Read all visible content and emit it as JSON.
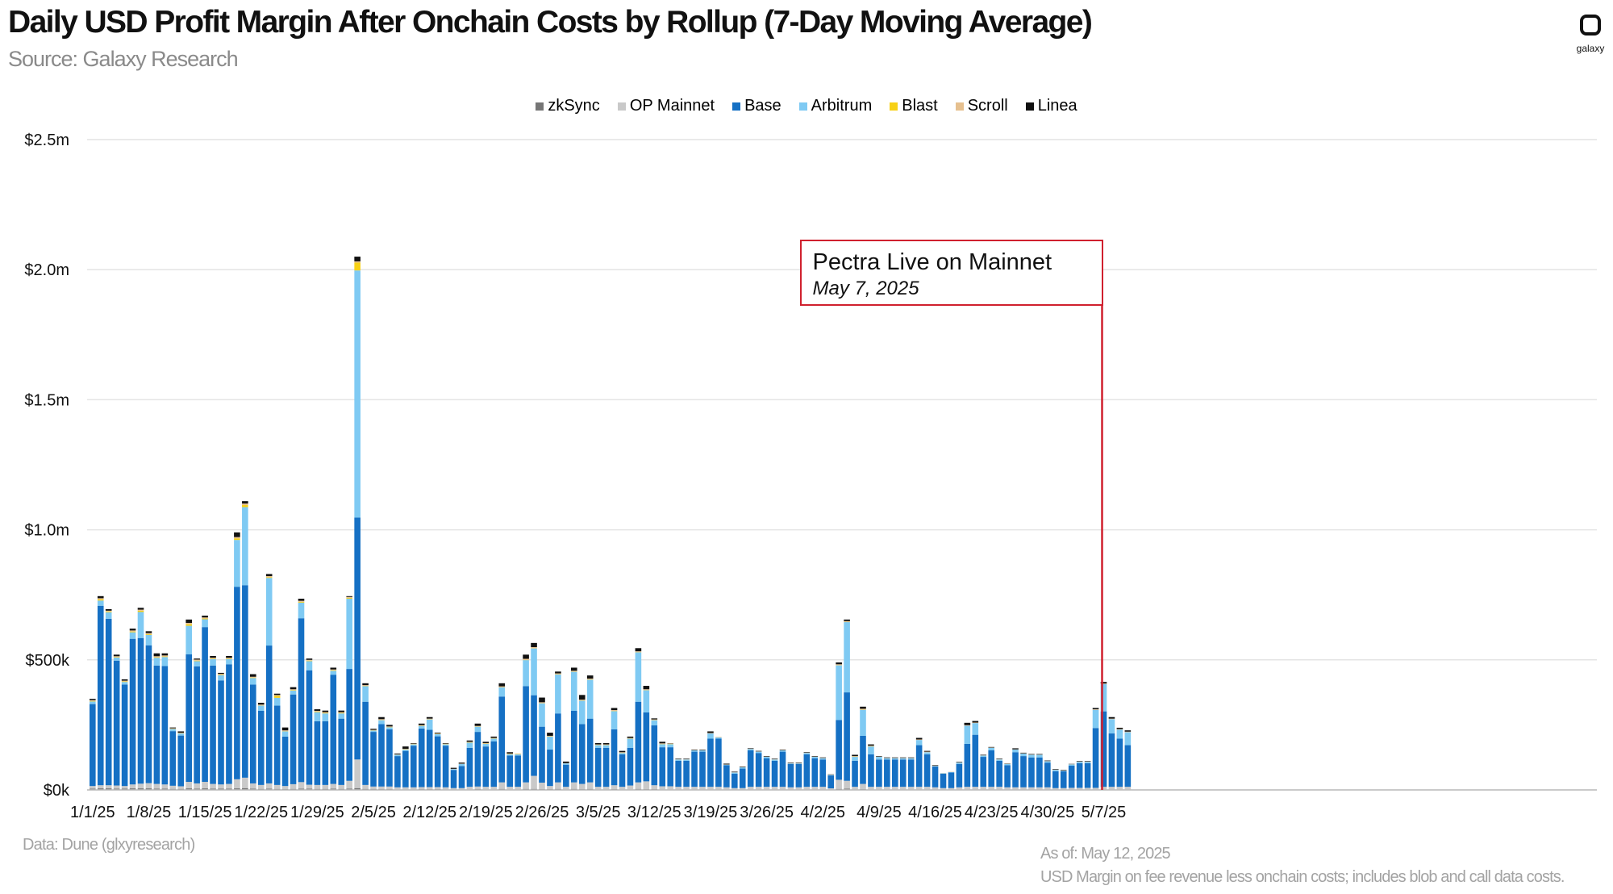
{
  "header": {
    "title": "Daily USD Profit Margin After Onchain Costs by Rollup (7-Day Moving Average)",
    "source": "Source: Galaxy Research",
    "logo_text": "galaxy"
  },
  "footer": {
    "data_note": "Data: Dune (glxyresearch)",
    "as_of": "As of: May 12, 2025",
    "method_note": "USD Margin on fee revenue less onchain costs; includes blob and call data costs."
  },
  "annotation": {
    "title": "Pectra Live on Mainnet",
    "date": "May 7, 2025",
    "color": "#d0202e",
    "x_category": "5/7/25"
  },
  "chart_data": {
    "type": "bar",
    "stacked": true,
    "title": "Daily USD Profit Margin After Onchain Costs by Rollup (7-Day Moving Average)",
    "ylim": [
      0,
      2500000
    ],
    "yticks": [
      0,
      500000,
      1000000,
      1500000,
      2000000,
      2500000
    ],
    "ytick_labels": [
      "$0k",
      "$500k",
      "$1.0m",
      "$1.5m",
      "$2.0m",
      "$2.5m"
    ],
    "grid": true,
    "legend_position": "top-center",
    "start_date": "1/1/25",
    "xtick_labels": [
      "1/1/25",
      "1/8/25",
      "1/15/25",
      "1/22/25",
      "1/29/25",
      "2/5/25",
      "2/12/25",
      "2/19/25",
      "2/26/25",
      "3/5/25",
      "3/12/25",
      "3/19/25",
      "3/26/25",
      "4/2/25",
      "4/9/25",
      "4/16/25",
      "4/23/25",
      "4/30/25",
      "5/7/25"
    ],
    "xtick_days": [
      0,
      7,
      14,
      21,
      28,
      35,
      42,
      49,
      56,
      63,
      70,
      77,
      84,
      91,
      98,
      105,
      112,
      119,
      126
    ],
    "totals_k": [
      350,
      745,
      695,
      520,
      425,
      620,
      700,
      610,
      525,
      525,
      240,
      225,
      655,
      505,
      670,
      515,
      450,
      515,
      990,
      1110,
      445,
      335,
      830,
      370,
      240,
      395,
      735,
      505,
      310,
      305,
      470,
      305,
      760,
      2050,
      410,
      235,
      280,
      250,
      140,
      165,
      180,
      255,
      280,
      220,
      180,
      85,
      105,
      190,
      255,
      185,
      205,
      410,
      145,
      140,
      520,
      565,
      355,
      220,
      460,
      105,
      470,
      365,
      440,
      180,
      180,
      315,
      150,
      205,
      545,
      400,
      275,
      185,
      180,
      120,
      120,
      155,
      155,
      225,
      205,
      100,
      70,
      90,
      160,
      150,
      130,
      120,
      155,
      105,
      105,
      145,
      130,
      125,
      60,
      490,
      655,
      135,
      320,
      175,
      130,
      125,
      125,
      125,
      125,
      200,
      150,
      95,
      65,
      70,
      110,
      250,
      265,
      135,
      165,
      120,
      100,
      160,
      140,
      135,
      135,
      110,
      80,
      75,
      100,
      110,
      110,
      315,
      415,
      280,
      235,
      225
    ],
    "series": [
      {
        "name": "zkSync",
        "color": "#767676",
        "values_k": [
          5,
          6,
          6,
          5,
          5,
          6,
          6,
          6,
          5,
          5,
          4,
          4,
          6,
          5,
          6,
          5,
          5,
          5,
          6,
          7,
          5,
          4,
          5,
          4,
          3,
          4,
          5,
          5,
          4,
          4,
          5,
          4,
          5,
          7,
          4,
          3,
          3,
          3,
          2,
          2,
          2,
          3,
          3,
          3,
          2,
          2,
          2,
          2,
          3,
          2,
          2,
          4,
          2,
          2,
          4,
          4,
          3,
          3,
          4,
          2,
          4,
          3,
          4,
          2,
          2,
          3,
          2,
          2,
          4,
          3,
          3,
          2,
          2,
          2,
          2,
          2,
          2,
          2,
          2,
          2,
          1,
          1,
          2,
          2,
          2,
          2,
          2,
          2,
          2,
          2,
          2,
          2,
          1,
          4,
          5,
          2,
          3,
          2,
          2,
          2,
          2,
          2,
          2,
          2,
          2,
          2,
          1,
          1,
          2,
          2,
          2,
          2,
          2,
          2,
          2,
          2,
          2,
          2,
          2,
          2,
          1,
          1,
          2,
          2,
          2,
          2,
          2,
          2,
          2,
          2
        ]
      },
      {
        "name": "OP Mainnet",
        "color": "#c9c9c9",
        "values_k": [
          10,
          12,
          12,
          12,
          10,
          15,
          18,
          20,
          18,
          16,
          12,
          10,
          25,
          20,
          25,
          18,
          16,
          18,
          35,
          40,
          20,
          15,
          20,
          15,
          12,
          18,
          25,
          15,
          15,
          15,
          18,
          15,
          30,
          110,
          15,
          10,
          10,
          10,
          8,
          8,
          8,
          8,
          8,
          8,
          8,
          5,
          5,
          10,
          10,
          10,
          10,
          25,
          10,
          10,
          25,
          50,
          25,
          12,
          25,
          10,
          25,
          20,
          25,
          10,
          10,
          15,
          10,
          15,
          25,
          30,
          15,
          12,
          12,
          10,
          10,
          10,
          10,
          10,
          10,
          8,
          6,
          6,
          10,
          10,
          10,
          10,
          10,
          8,
          8,
          10,
          10,
          10,
          5,
          35,
          30,
          10,
          20,
          10,
          10,
          10,
          10,
          10,
          10,
          10,
          10,
          8,
          6,
          6,
          8,
          10,
          10,
          10,
          10,
          10,
          8,
          8,
          8,
          8,
          8,
          8,
          6,
          6,
          6,
          6,
          6,
          6,
          10,
          10,
          10,
          10
        ]
      },
      {
        "name": "Base",
        "color": "#1570c4",
        "values_k": [
          315,
          690,
          640,
          480,
          390,
          560,
          560,
          530,
          455,
          455,
          210,
          195,
          490,
          450,
          595,
          455,
          400,
          460,
          740,
          740,
          380,
          285,
          530,
          305,
          190,
          345,
          630,
          440,
          245,
          245,
          420,
          255,
          430,
          930,
          320,
          210,
          240,
          220,
          120,
          140,
          160,
          225,
          220,
          195,
          160,
          70,
          85,
          150,
          210,
          155,
          175,
          330,
          120,
          120,
          370,
          310,
          215,
          140,
          265,
          85,
          275,
          230,
          245,
          150,
          150,
          215,
          125,
          145,
          310,
          265,
          230,
          150,
          150,
          100,
          100,
          135,
          135,
          185,
          185,
          85,
          55,
          75,
          140,
          130,
          110,
          100,
          135,
          90,
          90,
          125,
          110,
          105,
          50,
          230,
          340,
          100,
          185,
          125,
          105,
          105,
          105,
          105,
          105,
          160,
          125,
          80,
          55,
          60,
          90,
          165,
          200,
          115,
          140,
          100,
          85,
          135,
          120,
          115,
          115,
          95,
          65,
          65,
          85,
          95,
          95,
          230,
          290,
          205,
          185,
          160
        ]
      },
      {
        "name": "Arbitrum",
        "color": "#7fcaf3",
        "values_k": [
          10,
          20,
          25,
          12,
          10,
          25,
          100,
          40,
          30,
          35,
          8,
          8,
          110,
          20,
          30,
          25,
          20,
          20,
          180,
          300,
          25,
          20,
          260,
          30,
          20,
          15,
          60,
          35,
          35,
          30,
          15,
          20,
          270,
          950,
          60,
          5,
          15,
          8,
          5,
          5,
          5,
          10,
          40,
          8,
          5,
          3,
          8,
          20,
          20,
          10,
          10,
          35,
          5,
          5,
          100,
          180,
          90,
          50,
          150,
          5,
          150,
          90,
          150,
          10,
          10,
          70,
          5,
          35,
          190,
          85,
          20,
          12,
          12,
          5,
          5,
          5,
          5,
          20,
          5,
          2,
          5,
          5,
          5,
          5,
          5,
          5,
          5,
          2,
          2,
          5,
          5,
          5,
          2,
          210,
          270,
          15,
          100,
          30,
          10,
          5,
          5,
          5,
          5,
          20,
          8,
          2,
          2,
          2,
          5,
          70,
          45,
          5,
          10,
          5,
          5,
          10,
          10,
          10,
          10,
          5,
          5,
          2,
          5,
          5,
          5,
          70,
          105,
          55,
          35,
          50
        ]
      },
      {
        "name": "Blast",
        "color": "#f7d117",
        "values_k": [
          2,
          5,
          3,
          2,
          2,
          3,
          5,
          3,
          2,
          2,
          1,
          1,
          6,
          2,
          3,
          2,
          2,
          2,
          6,
          8,
          2,
          1,
          3,
          8,
          1,
          2,
          3,
          2,
          2,
          2,
          2,
          2,
          3,
          30,
          1,
          1,
          1,
          1,
          0,
          1,
          1,
          1,
          1,
          1,
          1,
          0,
          0,
          1,
          1,
          1,
          1,
          1,
          1,
          1,
          1,
          1,
          1,
          1,
          1,
          0,
          1,
          1,
          1,
          1,
          1,
          1,
          1,
          1,
          1,
          1,
          1,
          1,
          1,
          0,
          0,
          0,
          0,
          0,
          0,
          0,
          0,
          0,
          0,
          0,
          0,
          0,
          0,
          0,
          0,
          0,
          0,
          0,
          0,
          1,
          1,
          1,
          1,
          1,
          0,
          0,
          0,
          0,
          0,
          0,
          0,
          0,
          0,
          0,
          0,
          0,
          0,
          0,
          0,
          0,
          0,
          0,
          0,
          0,
          0,
          0,
          0,
          0,
          0,
          0,
          0,
          0,
          0,
          0,
          0,
          0
        ]
      },
      {
        "name": "Scroll",
        "color": "#e6c08f",
        "values_k": [
          3,
          4,
          3,
          3,
          3,
          4,
          4,
          4,
          4,
          4,
          2,
          2,
          5,
          4,
          4,
          3,
          3,
          3,
          5,
          6,
          3,
          3,
          4,
          3,
          3,
          3,
          4,
          3,
          3,
          3,
          3,
          3,
          4,
          5,
          3,
          2,
          3,
          2,
          2,
          2,
          2,
          2,
          2,
          2,
          2,
          1,
          1,
          2,
          2,
          2,
          2,
          3,
          2,
          2,
          4,
          4,
          3,
          2,
          3,
          1,
          3,
          3,
          3,
          2,
          2,
          3,
          2,
          2,
          3,
          3,
          2,
          2,
          2,
          1,
          1,
          1,
          1,
          2,
          2,
          1,
          1,
          1,
          1,
          1,
          1,
          1,
          1,
          1,
          1,
          1,
          1,
          1,
          1,
          3,
          3,
          2,
          3,
          2,
          1,
          1,
          1,
          1,
          1,
          2,
          2,
          1,
          1,
          1,
          1,
          2,
          2,
          1,
          1,
          1,
          1,
          1,
          1,
          1,
          1,
          1,
          1,
          1,
          1,
          1,
          1,
          2,
          2,
          2,
          2,
          2
        ]
      },
      {
        "name": "Linea",
        "color": "#111111",
        "values_k": [
          5,
          8,
          6,
          6,
          5,
          7,
          7,
          7,
          11,
          8,
          3,
          5,
          13,
          4,
          7,
          7,
          4,
          7,
          18,
          9,
          10,
          7,
          8,
          5,
          11,
          8,
          8,
          5,
          6,
          6,
          7,
          6,
          3,
          18,
          7,
          4,
          8,
          6,
          3,
          9,
          2,
          6,
          6,
          3,
          2,
          4,
          4,
          5,
          9,
          5,
          5,
          12,
          5,
          0,
          16,
          16,
          18,
          12,
          7,
          6,
          12,
          18,
          12,
          5,
          5,
          8,
          5,
          5,
          12,
          13,
          4,
          6,
          1,
          2,
          2,
          2,
          2,
          6,
          0,
          3,
          2,
          2,
          2,
          2,
          2,
          2,
          2,
          2,
          2,
          2,
          2,
          2,
          1,
          7,
          6,
          5,
          8,
          5,
          2,
          2,
          2,
          2,
          2,
          6,
          3,
          2,
          0,
          0,
          2,
          9,
          6,
          2,
          2,
          2,
          1,
          4,
          2,
          2,
          2,
          2,
          2,
          2,
          1,
          2,
          2,
          5,
          6,
          6,
          5,
          5
        ]
      }
    ]
  }
}
